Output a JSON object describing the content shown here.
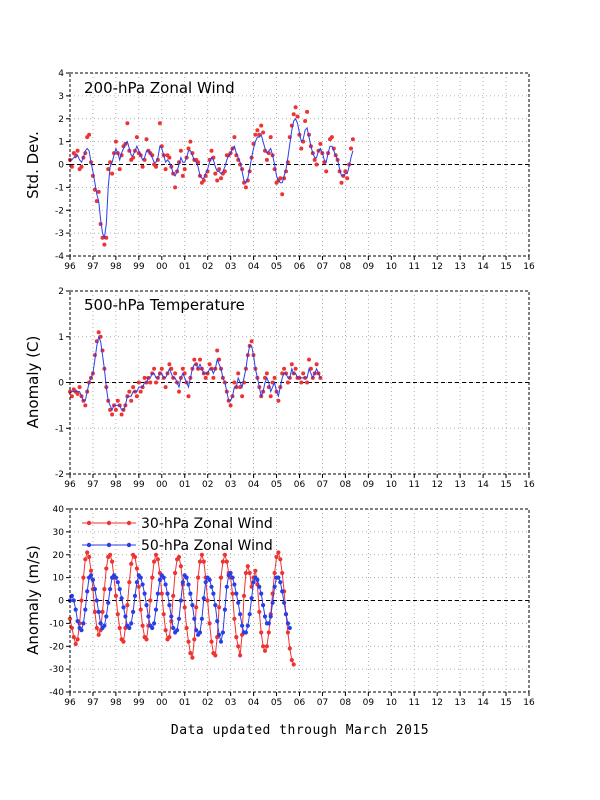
{
  "footer": "Data updated through March 2015",
  "colors": {
    "red": "#ee3333",
    "blue": "#2a3ee8",
    "grid": "#9a9a9a",
    "zero": "#000000"
  },
  "chart_data": [
    {
      "type": "scatter",
      "id": "wind200",
      "title": "200-hPa Zonal Wind",
      "ylabel": "Std. Dev.",
      "xlim": [
        1996,
        2016
      ],
      "ylim": [
        -4,
        4
      ],
      "xticks": [
        "96",
        "97",
        "98",
        "99",
        "00",
        "01",
        "02",
        "03",
        "04",
        "05",
        "06",
        "07",
        "08",
        "09",
        "10",
        "11",
        "12",
        "13",
        "14",
        "15",
        "16"
      ],
      "yticks": [
        "-4",
        "-3",
        "-2",
        "-1",
        "0",
        "1",
        "2",
        "3",
        "4"
      ],
      "x_start": 1996.0,
      "x_step": 0.0833,
      "series": [
        {
          "style": "points",
          "color": "red",
          "values": [
            0.2,
            -0.1,
            0.5,
            0.4,
            0.6,
            -0.2,
            -0.1,
            0.3,
            0.5,
            1.2,
            1.3,
            0.1,
            -0.5,
            -1.1,
            -1.6,
            -1.2,
            -2.6,
            -3.2,
            -3.5,
            -3.2,
            -0.2,
            0.1,
            -0.4,
            0.5,
            1.0,
            0.5,
            -0.2,
            0.4,
            0.8,
            0.9,
            1.8,
            0.6,
            0.2,
            0.3,
            0.6,
            1.2,
            0.5,
            0.4,
            -0.1,
            0.2,
            1.1,
            0.6,
            0.5,
            0.4,
            0.0,
            -0.1,
            0.2,
            1.8,
            0.8,
            0.4,
            -0.2,
            0.4,
            0.3,
            -0.1,
            -0.4,
            -1.0,
            -0.3,
            0.1,
            0.6,
            -0.5,
            -0.2,
            0.3,
            0.7,
            1.0,
            0.5,
            0.2,
            0.2,
            0.1,
            -0.5,
            -0.8,
            -0.7,
            -0.5,
            -0.3,
            0.2,
            0.6,
            0.3,
            -0.4,
            -0.7,
            -0.2,
            -0.6,
            -0.4,
            -0.3,
            0.4,
            0.4,
            0.5,
            0.7,
            1.2,
            0.4,
            0.2,
            0.0,
            -0.2,
            -0.8,
            -1.0,
            -0.7,
            -0.3,
            0.3,
            0.9,
            1.3,
            1.5,
            1.3,
            1.7,
            1.4,
            0.6,
            0.2,
            0.5,
            1.2,
            0.4,
            -0.2,
            -0.8,
            -0.7,
            -0.6,
            -1.3,
            -0.6,
            -0.3,
            0.1,
            1.2,
            1.7,
            2.2,
            2.5,
            2.1,
            1.3,
            0.7,
            1.0,
            1.9,
            2.3,
            1.3,
            0.8,
            0.5,
            0.2,
            0.0,
            0.6,
            0.9,
            0.5,
            0.1,
            -0.3,
            0.5,
            1.1,
            1.2,
            0.7,
            0.4,
            0.2,
            -0.3,
            -0.8,
            -0.5,
            -0.3,
            -0.6,
            0.0,
            0.7,
            1.1
          ]
        },
        {
          "style": "line",
          "color": "blue",
          "values": [
            0.2,
            0.2,
            0.3,
            0.3,
            0.4,
            0.2,
            0.1,
            0.3,
            0.6,
            0.7,
            0.6,
            0.1,
            -0.3,
            -0.8,
            -1.3,
            -1.6,
            -2.4,
            -3.0,
            -3.2,
            -2.6,
            -1.0,
            -0.1,
            0.1,
            0.4,
            0.7,
            0.5,
            0.2,
            0.5,
            0.7,
            0.9,
            1.0,
            0.7,
            0.4,
            0.4,
            0.6,
            0.8,
            0.6,
            0.4,
            0.2,
            0.3,
            0.6,
            0.6,
            0.5,
            0.3,
            0.1,
            0.1,
            0.3,
            0.8,
            0.7,
            0.4,
            0.1,
            0.2,
            0.1,
            -0.1,
            -0.4,
            -0.5,
            -0.3,
            0.0,
            0.3,
            0.1,
            0.1,
            0.3,
            0.6,
            0.6,
            0.4,
            0.2,
            0.1,
            -0.1,
            -0.5,
            -0.6,
            -0.6,
            -0.4,
            -0.2,
            0.1,
            0.3,
            0.2,
            -0.1,
            -0.3,
            -0.3,
            -0.4,
            -0.3,
            -0.1,
            0.2,
            0.4,
            0.5,
            0.7,
            0.8,
            0.5,
            0.3,
            0.1,
            -0.3,
            -0.7,
            -0.8,
            -0.6,
            -0.2,
            0.3,
            0.7,
            1.0,
            1.2,
            1.2,
            1.3,
            1.0,
            0.7,
            0.5,
            0.6,
            0.7,
            0.4,
            0.0,
            -0.5,
            -0.7,
            -0.8,
            -0.8,
            -0.5,
            -0.2,
            0.3,
            0.9,
            1.5,
            1.9,
            2.0,
            1.8,
            1.4,
            1.0,
            1.1,
            1.5,
            1.6,
            1.2,
            0.8,
            0.5,
            0.3,
            0.3,
            0.6,
            0.7,
            0.5,
            0.2,
            0.1,
            0.5,
            0.8,
            0.8,
            0.6,
            0.4,
            0.2,
            -0.2,
            -0.5,
            -0.5,
            -0.4,
            -0.4,
            -0.1,
            0.3,
            0.6
          ]
        }
      ]
    },
    {
      "type": "scatter",
      "id": "temp500",
      "title": "500-hPa Temperature",
      "ylabel": "Anomaly (C)",
      "xlim": [
        1996,
        2016
      ],
      "ylim": [
        -2,
        2
      ],
      "xticks": [
        "96",
        "97",
        "98",
        "99",
        "00",
        "01",
        "02",
        "03",
        "04",
        "05",
        "06",
        "07",
        "08",
        "09",
        "10",
        "11",
        "12",
        "13",
        "14",
        "15",
        "16"
      ],
      "yticks": [
        "-2",
        "-1",
        "0",
        "1",
        "2"
      ],
      "x_start": 1996.0,
      "x_step": 0.0833,
      "series": [
        {
          "style": "points",
          "color": "red",
          "values": [
            -0.2,
            -0.3,
            -0.15,
            -0.2,
            -0.25,
            -0.1,
            -0.3,
            -0.4,
            -0.5,
            -0.2,
            0.0,
            0.1,
            0.2,
            0.6,
            0.9,
            1.1,
            1.0,
            0.7,
            0.3,
            -0.1,
            -0.4,
            -0.6,
            -0.7,
            -0.5,
            -0.6,
            -0.4,
            -0.5,
            -0.7,
            -0.6,
            -0.5,
            -0.3,
            -0.2,
            -0.4,
            -0.1,
            -0.2,
            -0.3,
            0.0,
            -0.2,
            -0.1,
            0.1,
            0.0,
            0.1,
            0.0,
            0.2,
            0.3,
            0.0,
            0.1,
            0.2,
            0.3,
            0.1,
            -0.1,
            0.2,
            0.4,
            0.3,
            0.1,
            0.2,
            0.0,
            -0.2,
            0.1,
            0.3,
            0.2,
            0.0,
            -0.3,
            0.1,
            0.3,
            0.5,
            0.4,
            0.3,
            0.5,
            0.3,
            0.2,
            0.1,
            0.2,
            0.4,
            0.3,
            0.1,
            0.3,
            0.7,
            0.5,
            0.3,
            0.1,
            0.0,
            -0.2,
            -0.4,
            -0.5,
            -0.3,
            0.0,
            -0.1,
            0.2,
            -0.1,
            -0.3,
            0.0,
            0.3,
            0.6,
            0.8,
            0.9,
            0.6,
            0.3,
            0.1,
            -0.1,
            -0.3,
            -0.2,
            0.1,
            0.2,
            -0.1,
            -0.3,
            0.0,
            0.1,
            -0.2,
            -0.4,
            -0.1,
            0.2,
            0.3,
            0.2,
            0.0,
            0.1,
            0.4,
            0.2,
            0.3,
            0.1,
            0.1,
            0.0,
            0.2,
            0.1,
            0.0,
            0.5,
            0.3,
            0.1,
            0.2,
            0.4,
            0.2,
            0.1
          ]
        },
        {
          "style": "line",
          "color": "blue",
          "values": [
            -0.2,
            -0.2,
            -0.2,
            -0.2,
            -0.2,
            -0.2,
            -0.3,
            -0.4,
            -0.4,
            -0.2,
            0.0,
            0.1,
            0.2,
            0.5,
            0.8,
            1.0,
            0.9,
            0.6,
            0.3,
            -0.1,
            -0.4,
            -0.5,
            -0.6,
            -0.5,
            -0.5,
            -0.5,
            -0.5,
            -0.6,
            -0.6,
            -0.5,
            -0.3,
            -0.3,
            -0.3,
            -0.2,
            -0.2,
            -0.2,
            -0.1,
            -0.1,
            -0.1,
            0.0,
            0.0,
            0.1,
            0.1,
            0.2,
            0.2,
            0.1,
            0.1,
            0.2,
            0.2,
            0.1,
            0.1,
            0.2,
            0.3,
            0.2,
            0.1,
            0.1,
            0.0,
            -0.1,
            0.1,
            0.2,
            0.1,
            0.0,
            -0.1,
            0.1,
            0.3,
            0.4,
            0.4,
            0.3,
            0.4,
            0.3,
            0.2,
            0.2,
            0.2,
            0.3,
            0.3,
            0.2,
            0.3,
            0.5,
            0.4,
            0.3,
            0.1,
            0.0,
            -0.2,
            -0.4,
            -0.4,
            -0.3,
            -0.1,
            -0.1,
            0.1,
            0.0,
            -0.1,
            0.1,
            0.3,
            0.6,
            0.8,
            0.8,
            0.6,
            0.3,
            0.1,
            -0.1,
            -0.3,
            -0.2,
            0.0,
            0.1,
            0.0,
            -0.2,
            -0.1,
            0.0,
            -0.2,
            -0.3,
            -0.1,
            0.1,
            0.2,
            0.2,
            0.1,
            0.1,
            0.3,
            0.2,
            0.2,
            0.1,
            0.1,
            0.1,
            0.1,
            0.1,
            0.1,
            0.3,
            0.2,
            0.1,
            0.2,
            0.3,
            0.2,
            0.1
          ]
        }
      ]
    },
    {
      "type": "line",
      "id": "qbo",
      "ylabel": "Anomaly (m/s)",
      "xlim": [
        1996,
        2016
      ],
      "ylim": [
        -40,
        40
      ],
      "xticks": [
        "96",
        "97",
        "98",
        "99",
        "00",
        "01",
        "02",
        "03",
        "04",
        "05",
        "06",
        "07",
        "08",
        "09",
        "10",
        "11",
        "12",
        "13",
        "14",
        "15",
        "16"
      ],
      "yticks": [
        "-40",
        "-30",
        "-20",
        "-10",
        "0",
        "10",
        "20",
        "30",
        "40"
      ],
      "x_start": 1996.0,
      "x_step": 0.0833,
      "legend": {
        "placement": "top-left"
      },
      "series": [
        {
          "name": "30-hPa Zonal Wind",
          "style": "line-points",
          "color": "red",
          "values": [
            -8,
            -12,
            -16,
            -19,
            -17,
            -10,
            0,
            10,
            18,
            21,
            19,
            13,
            5,
            -5,
            -12,
            -15,
            -13,
            -5,
            5,
            14,
            19,
            20,
            17,
            10,
            2,
            -6,
            -12,
            -17,
            -18,
            -12,
            -2,
            8,
            16,
            20,
            19,
            14,
            6,
            -4,
            -11,
            -16,
            -17,
            -11,
            0,
            10,
            17,
            20,
            18,
            12,
            3,
            -6,
            -13,
            -17,
            -16,
            -9,
            2,
            12,
            18,
            19,
            15,
            7,
            -3,
            -12,
            -18,
            -23,
            -25,
            -17,
            -3,
            10,
            17,
            20,
            17,
            10,
            0,
            -10,
            -18,
            -23,
            -24,
            -16,
            -3,
            10,
            17,
            20,
            17,
            12,
            10,
            3,
            -8,
            -16,
            -20,
            -24,
            -15,
            2,
            12,
            15,
            12,
            6,
            10,
            13,
            7,
            -5,
            -14,
            -20,
            -22,
            -20,
            -14,
            -6,
            3,
            12,
            19,
            21,
            18,
            12,
            4,
            -6,
            -14,
            -21,
            -26,
            -28
          ]
        },
        {
          "name": "50-hPa Zonal Wind",
          "style": "line-points",
          "color": "blue",
          "values": [
            0,
            2,
            0,
            -4,
            -9,
            -12,
            -13,
            -10,
            -4,
            4,
            10,
            11,
            9,
            5,
            0,
            -5,
            -10,
            -12,
            -11,
            -7,
            -1,
            5,
            10,
            11,
            10,
            8,
            5,
            1,
            -3,
            -7,
            -11,
            -12,
            -10,
            -5,
            2,
            8,
            11,
            10,
            7,
            3,
            -2,
            -7,
            -11,
            -12,
            -10,
            -4,
            3,
            9,
            11,
            10,
            7,
            3,
            -2,
            -7,
            -12,
            -14,
            -13,
            -8,
            0,
            8,
            11,
            10,
            7,
            3,
            -2,
            -8,
            -13,
            -15,
            -14,
            -8,
            1,
            8,
            10,
            9,
            6,
            3,
            -2,
            -9,
            -15,
            -18,
            -14,
            -4,
            6,
            11,
            12,
            10,
            7,
            3,
            -1,
            -6,
            -11,
            -14,
            -14,
            -11,
            -6,
            1,
            8,
            10,
            9,
            6,
            3,
            -2,
            -7,
            -10,
            -10,
            -7,
            -1,
            6,
            10,
            10,
            8,
            4,
            -1,
            -6,
            -10,
            -12
          ]
        }
      ]
    }
  ]
}
